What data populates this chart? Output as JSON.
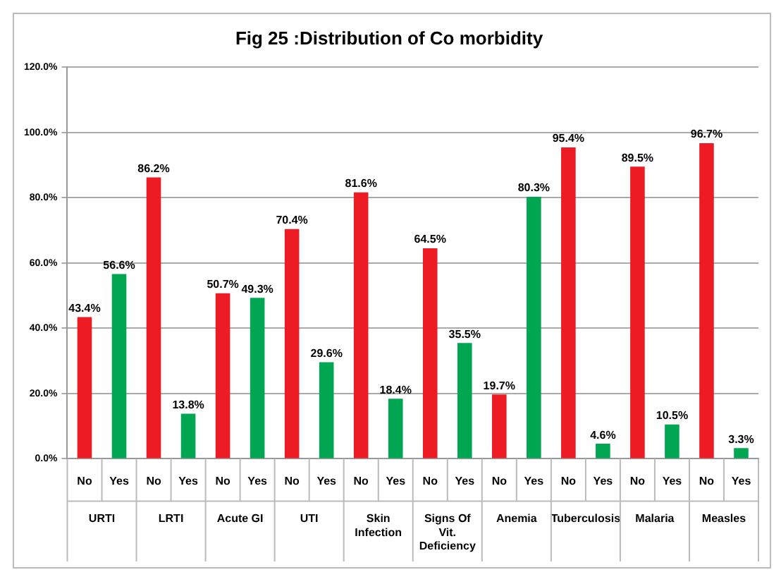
{
  "chart_data": {
    "type": "bar",
    "title": "Fig 25 :Distribution of Co morbidity",
    "categories": [
      "URTI",
      "LRTI",
      "Acute GI",
      "UTI",
      "Skin Infection",
      "Signs Of Vit. Deficiency",
      "Anemia",
      "Tuberculosis",
      "Malaria",
      "Measles"
    ],
    "series": [
      {
        "name": "No",
        "color": "#ed1c24",
        "values": [
          43.4,
          86.2,
          50.7,
          70.4,
          81.6,
          64.5,
          19.7,
          95.4,
          89.5,
          96.7
        ],
        "value_labels": [
          "43.4%",
          "86.2%",
          "50.7%",
          "70.4%",
          "81.6%",
          "64.5%",
          "19.7%",
          "95.4%",
          "89.5%",
          "96.7%"
        ]
      },
      {
        "name": "Yes",
        "color": "#00a651",
        "values": [
          56.6,
          13.8,
          49.3,
          29.6,
          18.4,
          35.5,
          80.3,
          4.6,
          10.5,
          3.3
        ],
        "value_labels": [
          "56.6%",
          "13.8%",
          "49.3%",
          "29.6%",
          "18.4%",
          "35.5%",
          "80.3%",
          "4.6%",
          "10.5%",
          "3.3%"
        ]
      }
    ],
    "ylim": [
      0,
      120
    ],
    "yticks": [
      {
        "value": 0,
        "label": "0.0%"
      },
      {
        "value": 20,
        "label": "20.0%"
      },
      {
        "value": 40,
        "label": "40.0%"
      },
      {
        "value": 60,
        "label": "60.0%"
      },
      {
        "value": 80,
        "label": "80.0%"
      },
      {
        "value": 100,
        "label": "100.0%"
      },
      {
        "value": 120,
        "label": "120.0%"
      }
    ],
    "grid": "y",
    "legend": false
  }
}
